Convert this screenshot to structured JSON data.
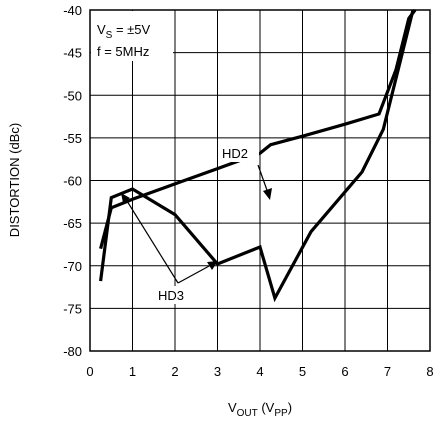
{
  "chart_data": {
    "type": "line",
    "xlabel_main": "V",
    "xlabel_sub": "OUT",
    "xlabel_unit_open": " (V",
    "xlabel_unit_sub": "PP",
    "xlabel_unit_close": ")",
    "ylabel": "DISTORTION (dBc)",
    "xlim": [
      0,
      8
    ],
    "ylim": [
      -80,
      -40
    ],
    "x_ticks": [
      0,
      1,
      2,
      3,
      4,
      5,
      6,
      7,
      8
    ],
    "y_ticks": [
      -40,
      -45,
      -50,
      -55,
      -60,
      -65,
      -70,
      -75,
      -80
    ],
    "grid": true,
    "annotations": {
      "cond1_main": "V",
      "cond1_sub": "S",
      "cond1_rest": " = ±5V",
      "cond2": "f = 5MHz"
    },
    "series": [
      {
        "name": "HD2",
        "points": [
          [
            0.25,
            -68
          ],
          [
            0.5,
            -63.2
          ],
          [
            1.0,
            -62.2
          ],
          [
            2.0,
            -60.4
          ],
          [
            3.0,
            -58.6
          ],
          [
            4.0,
            -56.8
          ],
          [
            4.25,
            -55.8
          ],
          [
            5.0,
            -54.8
          ],
          [
            6.0,
            -53.4
          ],
          [
            6.8,
            -52.2
          ],
          [
            7.2,
            -47
          ],
          [
            7.5,
            -41
          ],
          [
            7.65,
            -40
          ]
        ]
      },
      {
        "name": "HD3",
        "points": [
          [
            0.25,
            -71.8
          ],
          [
            0.5,
            -62
          ],
          [
            1.0,
            -61
          ],
          [
            2.0,
            -64
          ],
          [
            3.0,
            -69.8
          ],
          [
            4.0,
            -67.8
          ],
          [
            4.35,
            -73.8
          ],
          [
            5.2,
            -66
          ],
          [
            6.4,
            -59
          ],
          [
            6.9,
            -54
          ],
          [
            7.3,
            -46
          ],
          [
            7.6,
            -40
          ]
        ]
      }
    ]
  }
}
